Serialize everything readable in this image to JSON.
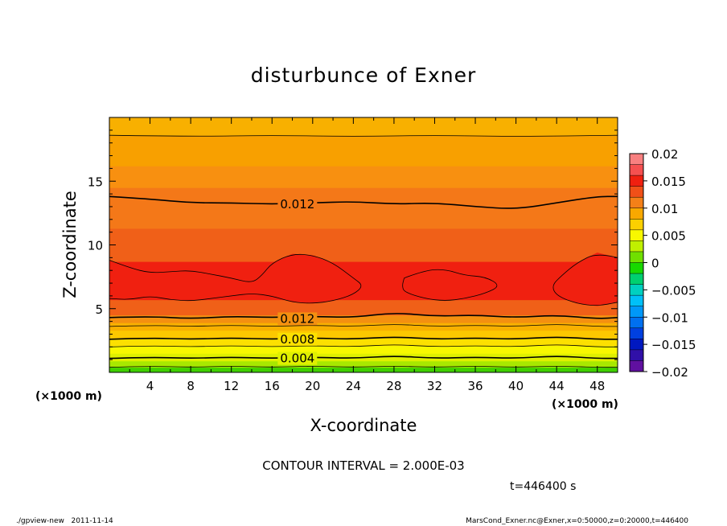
{
  "chart_data": {
    "type": "heatmap",
    "title": "disturbunce of Exner",
    "xlabel": "X-coordinate",
    "ylabel": "Z-coordinate",
    "x_unit": "(×1000 m)",
    "x_unit_top": "(×1000 m)",
    "xlim": [
      0,
      50
    ],
    "ylim": [
      0,
      20
    ],
    "x_ticks": [
      4,
      8,
      12,
      16,
      20,
      24,
      28,
      32,
      36,
      40,
      44,
      48
    ],
    "y_ticks": [
      5,
      10,
      15
    ],
    "contour_interval_text": "CONTOUR INTERVAL = 2.000E-03",
    "time_text": "t=446400 s",
    "footer_left": "./gpview-new   2011-11-14",
    "footer_right": "MarsCond_Exner.nc@Exner,x=0:50000,z=0:20000,t=446400",
    "contour_labels": [
      {
        "text": "0.012",
        "x": 18.5,
        "z": 13.2
      },
      {
        "text": "0.012",
        "x": 18.5,
        "z": 4.2
      },
      {
        "text": "0.008",
        "x": 18.5,
        "z": 2.6
      },
      {
        "text": "0.004",
        "x": 18.5,
        "z": 1.1
      }
    ],
    "colorbar": {
      "ticks": [
        "0.02",
        "0.015",
        "0.01",
        "0.005",
        "0",
        "−0.005",
        "−0.01",
        "−0.015",
        "−0.02"
      ],
      "levels": [
        {
          "from": 0.018,
          "to": 0.02,
          "color": "#f88080"
        },
        {
          "from": 0.016,
          "to": 0.018,
          "color": "#f55050"
        },
        {
          "from": 0.014,
          "to": 0.016,
          "color": "#f02010"
        },
        {
          "from": 0.012,
          "to": 0.014,
          "color": "#f05018"
        },
        {
          "from": 0.01,
          "to": 0.012,
          "color": "#f48018"
        },
        {
          "from": 0.008,
          "to": 0.01,
          "color": "#f8a800"
        },
        {
          "from": 0.006,
          "to": 0.008,
          "color": "#fcd000"
        },
        {
          "from": 0.004,
          "to": 0.006,
          "color": "#f8f800"
        },
        {
          "from": 0.002,
          "to": 0.004,
          "color": "#c0f000"
        },
        {
          "from": 0.0,
          "to": 0.002,
          "color": "#70e000"
        },
        {
          "from": -0.002,
          "to": 0.0,
          "color": "#18d800"
        },
        {
          "from": -0.004,
          "to": -0.002,
          "color": "#00d070"
        },
        {
          "from": -0.006,
          "to": -0.004,
          "color": "#00d0c0"
        },
        {
          "from": -0.008,
          "to": -0.006,
          "color": "#00c0f8"
        },
        {
          "from": -0.01,
          "to": -0.008,
          "color": "#0098f8"
        },
        {
          "from": -0.012,
          "to": -0.01,
          "color": "#0070f0"
        },
        {
          "from": -0.014,
          "to": -0.012,
          "color": "#0040e0"
        },
        {
          "from": -0.016,
          "to": -0.014,
          "color": "#0018c0"
        },
        {
          "from": -0.018,
          "to": -0.016,
          "color": "#3010a8"
        },
        {
          "from": -0.02,
          "to": -0.018,
          "color": "#6010a0"
        }
      ]
    },
    "bands": [
      {
        "z_from": 0.0,
        "z_to": 0.4,
        "value": 0.0005,
        "color": "#40d000"
      },
      {
        "z_from": 0.4,
        "z_to": 0.9,
        "value": 0.003,
        "color": "#a8e800"
      },
      {
        "z_from": 0.9,
        "z_to": 1.5,
        "value": 0.005,
        "color": "#e0f000"
      },
      {
        "z_from": 1.5,
        "z_to": 2.1,
        "value": 0.006,
        "color": "#f8f800"
      },
      {
        "z_from": 2.1,
        "z_to": 2.7,
        "value": 0.007,
        "color": "#fce000"
      },
      {
        "z_from": 2.7,
        "z_to": 3.3,
        "value": 0.008,
        "color": "#fcc800"
      },
      {
        "z_from": 3.3,
        "z_to": 3.9,
        "value": 0.009,
        "color": "#f8b000"
      },
      {
        "z_from": 3.9,
        "z_to": 4.5,
        "value": 0.011,
        "color": "#f49010"
      },
      {
        "z_from": 4.5,
        "z_to": 5.7,
        "value": 0.013,
        "color": "#f06018"
      },
      {
        "z_from": 5.7,
        "z_to": 8.7,
        "value": 0.015,
        "color": "#f02010"
      },
      {
        "z_from": 8.7,
        "z_to": 11.3,
        "value": 0.013,
        "color": "#f06018"
      },
      {
        "z_from": 11.3,
        "z_to": 14.5,
        "value": 0.011,
        "color": "#f47818"
      },
      {
        "z_from": 14.5,
        "z_to": 16.2,
        "value": 0.01,
        "color": "#f89010"
      },
      {
        "z_from": 16.2,
        "z_to": 18.6,
        "value": 0.009,
        "color": "#f8a000"
      },
      {
        "z_from": 18.6,
        "z_to": 20.0,
        "value": 0.008,
        "color": "#f8b000"
      }
    ],
    "contours": [
      {
        "value": 0.012,
        "points": [
          [
            0,
            13.8
          ],
          [
            4,
            13.6
          ],
          [
            8,
            13.3
          ],
          [
            12,
            13.3
          ],
          [
            16,
            13.2
          ],
          [
            20,
            13.3
          ],
          [
            24,
            13.4
          ],
          [
            28,
            13.2
          ],
          [
            32,
            13.3
          ],
          [
            36,
            13.0
          ],
          [
            40,
            12.8
          ],
          [
            44,
            13.3
          ],
          [
            48,
            13.8
          ],
          [
            50,
            13.8
          ]
        ]
      },
      {
        "value": 0.012,
        "points": [
          [
            0,
            4.3
          ],
          [
            4,
            4.4
          ],
          [
            8,
            4.2
          ],
          [
            12,
            4.4
          ],
          [
            16,
            4.3
          ],
          [
            20,
            4.4
          ],
          [
            24,
            4.3
          ],
          [
            28,
            4.7
          ],
          [
            32,
            4.4
          ],
          [
            36,
            4.5
          ],
          [
            40,
            4.3
          ],
          [
            44,
            4.5
          ],
          [
            48,
            4.2
          ],
          [
            50,
            4.3
          ]
        ]
      },
      {
        "value": 0.01,
        "points": [
          [
            0,
            3.6
          ],
          [
            4,
            3.7
          ],
          [
            8,
            3.6
          ],
          [
            12,
            3.7
          ],
          [
            16,
            3.6
          ],
          [
            20,
            3.7
          ],
          [
            24,
            3.6
          ],
          [
            28,
            3.8
          ],
          [
            32,
            3.6
          ],
          [
            36,
            3.7
          ],
          [
            40,
            3.6
          ],
          [
            44,
            3.8
          ],
          [
            48,
            3.6
          ],
          [
            50,
            3.6
          ]
        ]
      },
      {
        "value": 0.008,
        "points": [
          [
            0,
            2.6
          ],
          [
            4,
            2.7
          ],
          [
            8,
            2.6
          ],
          [
            12,
            2.7
          ],
          [
            16,
            2.6
          ],
          [
            20,
            2.7
          ],
          [
            24,
            2.6
          ],
          [
            28,
            2.8
          ],
          [
            32,
            2.6
          ],
          [
            36,
            2.7
          ],
          [
            40,
            2.6
          ],
          [
            44,
            2.8
          ],
          [
            48,
            2.6
          ],
          [
            50,
            2.6
          ]
        ]
      },
      {
        "value": 0.006,
        "points": [
          [
            0,
            2.0
          ],
          [
            4,
            2.1
          ],
          [
            8,
            2.0
          ],
          [
            12,
            2.1
          ],
          [
            16,
            2.0
          ],
          [
            20,
            2.1
          ],
          [
            24,
            2.0
          ],
          [
            28,
            2.2
          ],
          [
            32,
            2.0
          ],
          [
            36,
            2.1
          ],
          [
            40,
            2.0
          ],
          [
            44,
            2.2
          ],
          [
            48,
            2.0
          ],
          [
            50,
            2.0
          ]
        ]
      },
      {
        "value": 0.004,
        "points": [
          [
            0,
            1.1
          ],
          [
            4,
            1.2
          ],
          [
            8,
            1.1
          ],
          [
            12,
            1.2
          ],
          [
            16,
            1.1
          ],
          [
            20,
            1.2
          ],
          [
            24,
            1.1
          ],
          [
            28,
            1.3
          ],
          [
            32,
            1.1
          ],
          [
            36,
            1.2
          ],
          [
            40,
            1.1
          ],
          [
            44,
            1.3
          ],
          [
            48,
            1.1
          ],
          [
            50,
            1.1
          ]
        ]
      },
      {
        "value": 0.002,
        "points": [
          [
            0,
            0.4
          ],
          [
            4,
            0.5
          ],
          [
            8,
            0.4
          ],
          [
            12,
            0.5
          ],
          [
            16,
            0.4
          ],
          [
            20,
            0.5
          ],
          [
            24,
            0.4
          ],
          [
            28,
            0.5
          ],
          [
            32,
            0.4
          ],
          [
            36,
            0.5
          ],
          [
            40,
            0.4
          ],
          [
            44,
            0.5
          ],
          [
            48,
            0.4
          ],
          [
            50,
            0.4
          ]
        ]
      },
      {
        "value": 0.014,
        "points": [
          [
            0,
            8.8
          ],
          [
            2,
            8.2
          ],
          [
            4,
            7.8
          ],
          [
            6,
            7.9
          ],
          [
            8,
            8.0
          ],
          [
            10,
            7.7
          ],
          [
            12,
            7.4
          ],
          [
            14,
            7.0
          ],
          [
            15,
            7.6
          ],
          [
            16,
            8.6
          ],
          [
            18,
            9.3
          ],
          [
            20,
            9.2
          ],
          [
            22,
            8.6
          ],
          [
            24,
            7.4
          ],
          [
            25,
            6.8
          ],
          [
            24,
            6.1
          ],
          [
            22,
            5.6
          ],
          [
            20,
            5.4
          ],
          [
            18,
            5.5
          ],
          [
            16,
            6.0
          ],
          [
            14,
            6.2
          ],
          [
            12,
            6.0
          ],
          [
            10,
            5.8
          ],
          [
            8,
            5.6
          ],
          [
            6,
            5.7
          ],
          [
            4,
            6.0
          ],
          [
            2,
            5.7
          ],
          [
            0,
            5.8
          ]
        ]
      },
      {
        "value": 0.014,
        "points": [
          [
            29,
            7.4
          ],
          [
            31,
            8.0
          ],
          [
            33,
            8.1
          ],
          [
            35,
            7.6
          ],
          [
            37,
            7.5
          ],
          [
            38.5,
            6.8
          ],
          [
            37,
            6.2
          ],
          [
            35,
            5.8
          ],
          [
            33,
            5.6
          ],
          [
            31,
            5.8
          ],
          [
            29,
            6.3
          ],
          [
            28.8,
            6.8
          ],
          [
            29,
            7.4
          ]
        ]
      },
      {
        "value": 0.014,
        "points": [
          [
            50,
            9.0
          ],
          [
            48,
            9.4
          ],
          [
            46,
            8.6
          ],
          [
            44.5,
            7.6
          ],
          [
            43.5,
            6.8
          ],
          [
            44,
            6.0
          ],
          [
            46,
            5.4
          ],
          [
            48,
            5.2
          ],
          [
            50,
            5.5
          ]
        ]
      },
      {
        "value": 0.01,
        "points": [
          [
            0,
            18.6
          ],
          [
            8,
            18.5
          ],
          [
            16,
            18.6
          ],
          [
            24,
            18.5
          ],
          [
            32,
            18.6
          ],
          [
            40,
            18.5
          ],
          [
            50,
            18.6
          ]
        ]
      }
    ],
    "regions": [
      {
        "value": 0.015,
        "color": "#f02010",
        "points": [
          [
            0,
            8.8
          ],
          [
            2,
            8.2
          ],
          [
            4,
            7.8
          ],
          [
            6,
            7.9
          ],
          [
            8,
            8.0
          ],
          [
            10,
            7.7
          ],
          [
            12,
            7.4
          ],
          [
            14,
            7.0
          ],
          [
            15,
            7.6
          ],
          [
            16,
            8.6
          ],
          [
            18,
            9.3
          ],
          [
            20,
            9.2
          ],
          [
            22,
            8.6
          ],
          [
            24,
            7.4
          ],
          [
            25,
            6.8
          ],
          [
            24,
            6.1
          ],
          [
            22,
            5.6
          ],
          [
            20,
            5.4
          ],
          [
            18,
            5.5
          ],
          [
            16,
            6.0
          ],
          [
            14,
            6.2
          ],
          [
            12,
            6.0
          ],
          [
            10,
            5.8
          ],
          [
            8,
            5.6
          ],
          [
            6,
            5.7
          ],
          [
            4,
            6.0
          ],
          [
            2,
            5.7
          ],
          [
            0,
            5.8
          ]
        ]
      },
      {
        "value": 0.015,
        "color": "#f02010",
        "points": [
          [
            29,
            7.4
          ],
          [
            31,
            8.0
          ],
          [
            33,
            8.1
          ],
          [
            35,
            7.6
          ],
          [
            37,
            7.5
          ],
          [
            38.5,
            6.8
          ],
          [
            37,
            6.2
          ],
          [
            35,
            5.8
          ],
          [
            33,
            5.6
          ],
          [
            31,
            5.8
          ],
          [
            29,
            6.3
          ],
          [
            28.8,
            6.8
          ]
        ]
      },
      {
        "value": 0.015,
        "color": "#f02010",
        "points": [
          [
            50,
            9.0
          ],
          [
            48,
            9.4
          ],
          [
            46,
            8.6
          ],
          [
            44.5,
            7.6
          ],
          [
            43.5,
            6.8
          ],
          [
            44,
            6.0
          ],
          [
            46,
            5.4
          ],
          [
            48,
            5.2
          ],
          [
            50,
            5.5
          ]
        ]
      }
    ]
  }
}
